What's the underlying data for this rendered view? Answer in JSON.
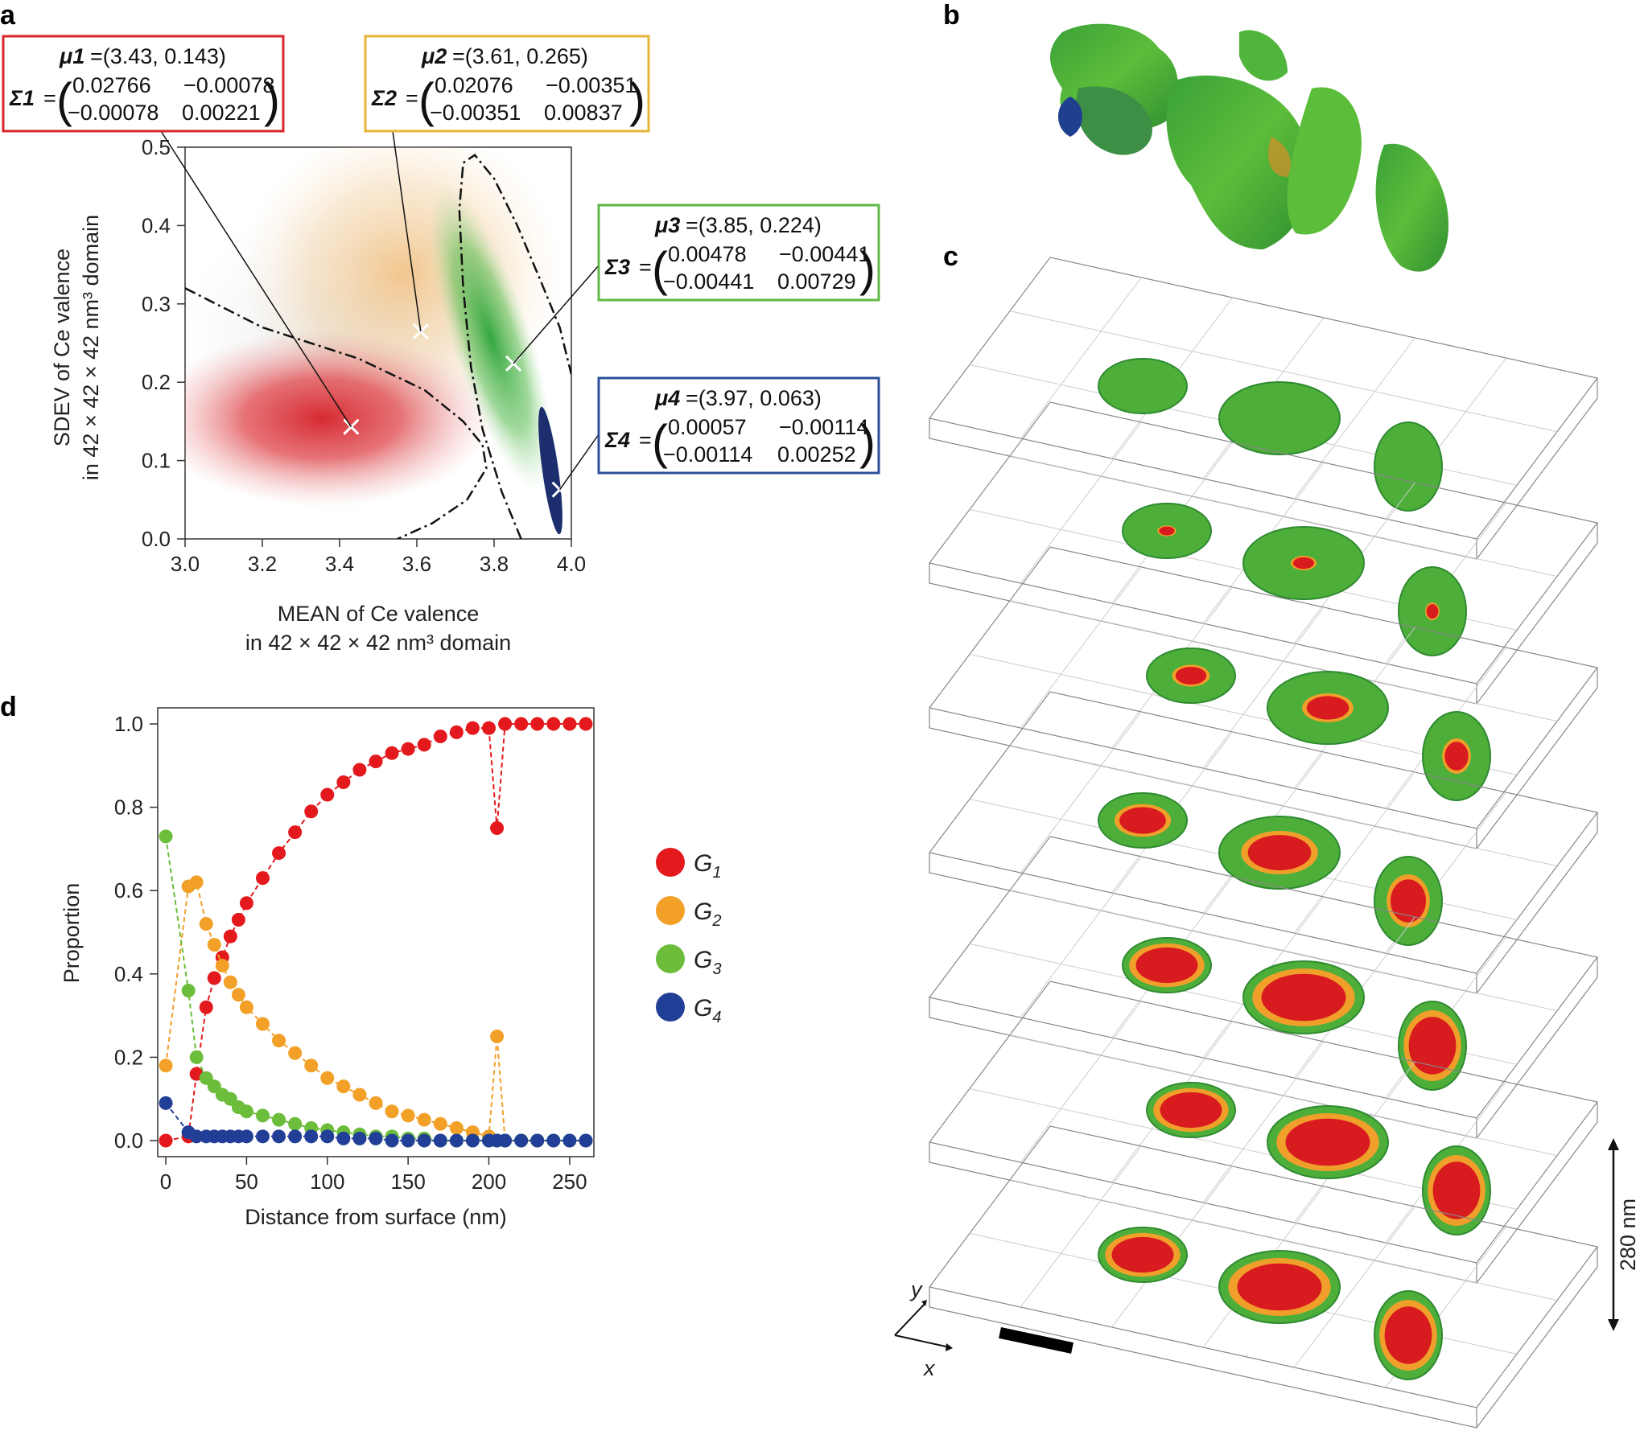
{
  "panels": {
    "a": "a",
    "b": "b",
    "c": "c",
    "d": "d"
  },
  "colors": {
    "G1": "#e4191d",
    "G2": "#f2a027",
    "G3": "#6bbd3b",
    "G4": "#213f97"
  },
  "chart_data": [
    {
      "id": "a",
      "type": "scatter",
      "xlabel": "MEAN of Ce valence",
      "xlabel2": "in 42 × 42 × 42 nm³ domain",
      "ylabel": "SDEV of Ce valence",
      "ylabel2": "in 42 × 42 × 42 nm³ domain",
      "xlim": [
        3.0,
        4.0
      ],
      "ylim": [
        0.0,
        0.5
      ],
      "xticks": [
        "3.0",
        "3.2",
        "3.4",
        "3.6",
        "3.8",
        "4.0"
      ],
      "yticks": [
        "0.0",
        "0.1",
        "0.2",
        "0.3",
        "0.4",
        "0.5"
      ],
      "components": [
        {
          "name": "G1",
          "mu_label": "μ1",
          "mu": "=(3.43, 0.143)",
          "sigma_label": "Σ1",
          "mean": [
            3.43,
            0.143
          ],
          "cov": [
            [
              "0.02766",
              "−0.00078"
            ],
            [
              "−0.00078",
              "0.00221"
            ]
          ],
          "box_color": "#d9252b"
        },
        {
          "name": "G2",
          "mu_label": "μ2",
          "mu": "=(3.61, 0.265)",
          "sigma_label": "Σ2",
          "mean": [
            3.61,
            0.265
          ],
          "cov": [
            [
              "0.02076",
              "−0.00351"
            ],
            [
              "−0.00351",
              "0.00837"
            ]
          ],
          "box_color": "#e8b43a"
        },
        {
          "name": "G3",
          "mu_label": "μ3",
          "mu": "=(3.85, 0.224)",
          "sigma_label": "Σ3",
          "mean": [
            3.85,
            0.224
          ],
          "cov": [
            [
              "0.00478",
              "−0.00441"
            ],
            [
              "−0.00441",
              "0.00729"
            ]
          ],
          "box_color": "#5fb843"
        },
        {
          "name": "G4",
          "mu_label": "μ4",
          "mu": "=(3.97, 0.063)",
          "sigma_label": "Σ4",
          "mean": [
            3.97,
            0.063
          ],
          "cov": [
            [
              "0.00057",
              "−0.00114"
            ],
            [
              "−0.00114",
              "0.00252"
            ]
          ],
          "box_color": "#2b4f9c"
        }
      ],
      "boundaries": [
        {
          "between": "G1/G2",
          "points": [
            [
              3.0,
              0.32
            ],
            [
              3.2,
              0.27
            ],
            [
              3.45,
              0.23
            ],
            [
              3.62,
              0.19
            ],
            [
              3.72,
              0.15
            ],
            [
              3.77,
              0.12
            ],
            [
              3.78,
              0.09
            ],
            [
              3.73,
              0.05
            ],
            [
              3.64,
              0.02
            ],
            [
              3.55,
              0.0
            ]
          ]
        },
        {
          "between": "G2/G3",
          "points": [
            [
              3.87,
              0.0
            ],
            [
              3.82,
              0.06
            ],
            [
              3.77,
              0.14
            ],
            [
              3.74,
              0.22
            ],
            [
              3.72,
              0.32
            ],
            [
              3.71,
              0.42
            ],
            [
              3.72,
              0.48
            ],
            [
              3.75,
              0.49
            ],
            [
              3.8,
              0.46
            ],
            [
              3.86,
              0.4
            ],
            [
              3.92,
              0.33
            ],
            [
              3.97,
              0.27
            ],
            [
              4.0,
              0.21
            ]
          ]
        }
      ]
    },
    {
      "id": "d",
      "type": "line",
      "xlabel": "Distance from surface (nm)",
      "ylabel": "Proportion",
      "xlim": [
        -5,
        265
      ],
      "ylim": [
        0.0,
        1.0
      ],
      "xticks": [
        "0",
        "50",
        "100",
        "150",
        "200",
        "250"
      ],
      "yticks": [
        "0.0",
        "0.2",
        "0.4",
        "0.6",
        "0.8",
        "1.0"
      ],
      "x": [
        0,
        14,
        19,
        25,
        30,
        35,
        40,
        45,
        50,
        60,
        70,
        80,
        90,
        100,
        110,
        120,
        130,
        140,
        150,
        160,
        170,
        180,
        190,
        200,
        205,
        210,
        220,
        230,
        240,
        250,
        260
      ],
      "series": [
        {
          "name": "G1",
          "values": [
            0.0,
            0.01,
            0.16,
            0.32,
            0.39,
            0.44,
            0.49,
            0.53,
            0.57,
            0.63,
            0.69,
            0.74,
            0.79,
            0.83,
            0.86,
            0.89,
            0.91,
            0.93,
            0.94,
            0.95,
            0.97,
            0.98,
            0.99,
            0.99,
            0.75,
            1.0,
            1.0,
            1.0,
            1.0,
            1.0,
            1.0
          ]
        },
        {
          "name": "G2",
          "values": [
            0.18,
            0.61,
            0.62,
            0.52,
            0.47,
            0.42,
            0.38,
            0.35,
            0.32,
            0.28,
            0.24,
            0.21,
            0.18,
            0.15,
            0.13,
            0.11,
            0.09,
            0.07,
            0.06,
            0.05,
            0.04,
            0.03,
            0.02,
            0.01,
            0.25,
            0.0,
            0.0,
            0.0,
            0.0,
            0.0,
            0.0
          ]
        },
        {
          "name": "G3",
          "values": [
            0.73,
            0.36,
            0.2,
            0.15,
            0.13,
            0.11,
            0.1,
            0.08,
            0.07,
            0.06,
            0.05,
            0.04,
            0.03,
            0.025,
            0.02,
            0.015,
            0.01,
            0.01,
            0.005,
            0.005,
            0.0,
            0.0,
            0.0,
            0.0,
            0.0,
            0.0,
            0.0,
            0.0,
            0.0,
            0.0,
            0.0
          ]
        },
        {
          "name": "G4",
          "values": [
            0.09,
            0.02,
            0.01,
            0.01,
            0.01,
            0.01,
            0.01,
            0.01,
            0.01,
            0.01,
            0.01,
            0.01,
            0.01,
            0.01,
            0.005,
            0.005,
            0.005,
            0.0,
            0.0,
            0.0,
            0.0,
            0.0,
            0.0,
            0.0,
            0.0,
            0.0,
            0.0,
            0.0,
            0.0,
            0.0,
            0.0
          ]
        }
      ],
      "legend": [
        {
          "name": "G1",
          "label": "G",
          "sub": "1"
        },
        {
          "name": "G2",
          "label": "G",
          "sub": "2"
        },
        {
          "name": "G3",
          "label": "G",
          "sub": "3"
        },
        {
          "name": "G4",
          "label": "G",
          "sub": "4"
        }
      ]
    }
  ],
  "panel_c": {
    "scale_label": "280 nm",
    "axis_x": "x",
    "axis_y": "y"
  }
}
